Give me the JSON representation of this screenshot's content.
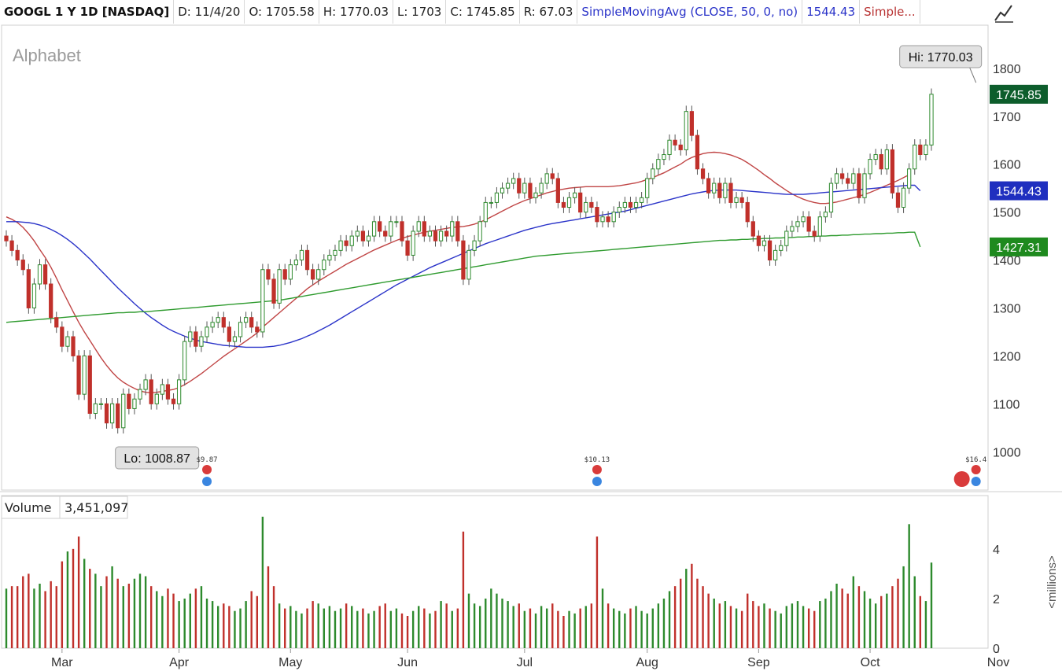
{
  "header": {
    "symbol": "GOOGL 1 Y 1D [NASDAQ]",
    "date": "D: 11/4/20",
    "open": "O: 1705.58",
    "high": "H: 1770.03",
    "low": "L: 1703",
    "close": "C: 1745.85",
    "range": "R: 67.03",
    "sma50_label": "SimpleMovingAvg (CLOSE, 50, 0, no)",
    "sma50_value": "1544.43",
    "sma20_label": "Simple..."
  },
  "chart_data": {
    "type": "candlestick",
    "company": "Alphabet",
    "ylim": [
      920,
      1890
    ],
    "y_ticks": [
      1000,
      1100,
      1200,
      1300,
      1400,
      1500,
      1600,
      1700,
      1800
    ],
    "x_labels": [
      "Mar",
      "Apr",
      "May",
      "Jun",
      "Jul",
      "Aug",
      "Sep",
      "Oct",
      "Nov"
    ],
    "x_label_days": [
      10,
      31,
      51,
      72,
      93,
      115,
      135,
      155,
      178
    ],
    "hi_label": "Hi: 1770.03",
    "lo_label": "Lo: 1008.87",
    "hi_day": 174,
    "lo_day": 20,
    "hi_value": 1770.03,
    "lo_value": 1008.87,
    "badges": [
      {
        "name": "last-close",
        "text": "1745.85",
        "value": 1745.85,
        "color": "#0d5d2c"
      },
      {
        "name": "sma50",
        "text": "1544.43",
        "value": 1544.43,
        "color": "#1f2fbf"
      },
      {
        "name": "sma200",
        "text": "1427.31",
        "value": 1427.31,
        "color": "#1e8a1e"
      }
    ],
    "closes": [
      1440,
      1420,
      1400,
      1380,
      1300,
      1350,
      1390,
      1350,
      1280,
      1260,
      1220,
      1240,
      1200,
      1120,
      1200,
      1080,
      1100,
      1100,
      1060,
      1100,
      1050,
      1120,
      1090,
      1110,
      1130,
      1150,
      1100,
      1120,
      1140,
      1110,
      1100,
      1150,
      1230,
      1250,
      1220,
      1240,
      1260,
      1270,
      1280,
      1260,
      1230,
      1240,
      1270,
      1280,
      1260,
      1250,
      1380,
      1360,
      1310,
      1380,
      1360,
      1390,
      1400,
      1420,
      1380,
      1360,
      1380,
      1400,
      1410,
      1420,
      1440,
      1430,
      1450,
      1460,
      1440,
      1450,
      1480,
      1460,
      1450,
      1480,
      1480,
      1440,
      1410,
      1460,
      1480,
      1450,
      1460,
      1440,
      1460,
      1450,
      1480,
      1440,
      1360,
      1420,
      1440,
      1480,
      1520,
      1520,
      1540,
      1550,
      1560,
      1570,
      1540,
      1560,
      1530,
      1540,
      1560,
      1580,
      1570,
      1520,
      1510,
      1530,
      1540,
      1500,
      1520,
      1510,
      1480,
      1490,
      1480,
      1500,
      1510,
      1520,
      1510,
      1520,
      1530,
      1570,
      1590,
      1610,
      1620,
      1650,
      1640,
      1630,
      1710,
      1660,
      1590,
      1570,
      1540,
      1560,
      1530,
      1560,
      1520,
      1530,
      1520,
      1480,
      1450,
      1430,
      1440,
      1400,
      1420,
      1430,
      1460,
      1470,
      1480,
      1490,
      1460,
      1450,
      1490,
      1500,
      1560,
      1580,
      1570,
      1560,
      1580,
      1530,
      1580,
      1610,
      1620,
      1590,
      1630,
      1540,
      1510,
      1550,
      1590,
      1640,
      1620,
      1640,
      1745.85
    ],
    "moving_averages": [
      {
        "name": "sma20",
        "color": "#c04545",
        "values": [
          1490,
          1485,
          1478,
          1468,
          1455,
          1440,
          1422,
          1405,
          1385,
          1362,
          1338,
          1315,
          1292,
          1270,
          1250,
          1232,
          1214,
          1196,
          1180,
          1166,
          1154,
          1145,
          1138,
          1132,
          1127,
          1124,
          1123,
          1124,
          1126,
          1128,
          1130,
          1134,
          1140,
          1147,
          1155,
          1163,
          1172,
          1181,
          1190,
          1199,
          1207,
          1215,
          1223,
          1231,
          1239,
          1248,
          1260,
          1270,
          1280,
          1290,
          1300,
          1310,
          1320,
          1330,
          1340,
          1348,
          1356,
          1363,
          1370,
          1377,
          1384,
          1391,
          1397,
          1403,
          1409,
          1415,
          1421,
          1426,
          1431,
          1436,
          1441,
          1445,
          1449,
          1452,
          1455,
          1458,
          1460,
          1462,
          1464,
          1466,
          1468,
          1469,
          1470,
          1472,
          1475,
          1479,
          1484,
          1490,
          1496,
          1502,
          1508,
          1514,
          1519,
          1524,
          1528,
          1532,
          1536,
          1540,
          1543,
          1546,
          1548,
          1550,
          1551,
          1552,
          1553,
          1553,
          1553,
          1553,
          1553,
          1554,
          1555,
          1557,
          1559,
          1561,
          1564,
          1568,
          1572,
          1577,
          1582,
          1588,
          1594,
          1600,
          1608,
          1614,
          1618,
          1622,
          1624,
          1625,
          1624,
          1622,
          1619,
          1615,
          1610,
          1603,
          1595,
          1587,
          1578,
          1570,
          1561,
          1553,
          1545,
          1538,
          1532,
          1527,
          1523,
          1520,
          1518,
          1518,
          1519,
          1521,
          1524,
          1527,
          1530,
          1533,
          1537,
          1541,
          1546,
          1551,
          1556,
          1561,
          1566,
          1572,
          1578
        ]
      },
      {
        "name": "sma50",
        "color": "#2b34c9",
        "values": [
          1480,
          1480,
          1480,
          1479,
          1478,
          1476,
          1473,
          1469,
          1464,
          1458,
          1451,
          1443,
          1434,
          1424,
          1413,
          1402,
          1390,
          1378,
          1366,
          1354,
          1342,
          1331,
          1320,
          1309,
          1299,
          1289,
          1280,
          1272,
          1264,
          1257,
          1251,
          1246,
          1241,
          1237,
          1233,
          1230,
          1228,
          1226,
          1224,
          1222,
          1221,
          1220,
          1219,
          1218,
          1218,
          1218,
          1218,
          1219,
          1220,
          1222,
          1225,
          1228,
          1232,
          1236,
          1241,
          1246,
          1252,
          1258,
          1264,
          1271,
          1278,
          1285,
          1292,
          1299,
          1306,
          1313,
          1320,
          1327,
          1334,
          1341,
          1348,
          1354,
          1360,
          1366,
          1372,
          1378,
          1384,
          1389,
          1394,
          1399,
          1404,
          1409,
          1414,
          1419,
          1424,
          1429,
          1434,
          1438,
          1442,
          1446,
          1450,
          1454,
          1458,
          1462,
          1465,
          1468,
          1471,
          1474,
          1476,
          1478,
          1480,
          1482,
          1484,
          1486,
          1488,
          1490,
          1492,
          1494,
          1496,
          1498,
          1500,
          1502,
          1505,
          1508,
          1511,
          1514,
          1517,
          1520,
          1523,
          1526,
          1529,
          1532,
          1535,
          1538,
          1540,
          1542,
          1544,
          1545,
          1546,
          1546,
          1546,
          1546,
          1545,
          1544,
          1543,
          1542,
          1541,
          1540,
          1539,
          1538,
          1537,
          1537,
          1537,
          1537,
          1538,
          1539,
          1540,
          1541,
          1542,
          1543,
          1544,
          1545,
          1546,
          1547,
          1548,
          1549,
          1550,
          1551,
          1552,
          1553,
          1554,
          1555,
          1556,
          1556,
          1544.43
        ]
      },
      {
        "name": "sma200",
        "color": "#2f9b2f",
        "values": [
          1270,
          1271,
          1272,
          1273,
          1274,
          1275,
          1276,
          1277,
          1278,
          1279,
          1280,
          1281,
          1282,
          1283,
          1284,
          1285,
          1286,
          1287,
          1288,
          1289,
          1290,
          1290,
          1291,
          1291,
          1292,
          1292,
          1293,
          1294,
          1295,
          1296,
          1297,
          1298,
          1299,
          1300,
          1301,
          1302,
          1303,
          1304,
          1305,
          1306,
          1307,
          1308,
          1309,
          1310,
          1311,
          1312,
          1313,
          1314,
          1315,
          1316,
          1318,
          1320,
          1322,
          1324,
          1326,
          1328,
          1330,
          1332,
          1334,
          1336,
          1338,
          1340,
          1342,
          1344,
          1346,
          1348,
          1350,
          1352,
          1354,
          1356,
          1358,
          1360,
          1362,
          1364,
          1366,
          1368,
          1370,
          1372,
          1374,
          1376,
          1378,
          1380,
          1382,
          1384,
          1386,
          1388,
          1390,
          1392,
          1394,
          1396,
          1398,
          1400,
          1402,
          1404,
          1406,
          1408,
          1409,
          1410,
          1411,
          1412,
          1413,
          1414,
          1415,
          1416,
          1417,
          1418,
          1419,
          1420,
          1421,
          1422,
          1423,
          1424,
          1425,
          1426,
          1427,
          1428,
          1429,
          1430,
          1431,
          1432,
          1433,
          1434,
          1435,
          1436,
          1437,
          1438,
          1439,
          1440,
          1441,
          1441,
          1442,
          1442,
          1443,
          1443,
          1444,
          1444,
          1445,
          1445,
          1446,
          1446,
          1447,
          1447,
          1448,
          1448,
          1449,
          1449,
          1450,
          1450,
          1451,
          1451,
          1452,
          1452,
          1453,
          1453,
          1454,
          1454,
          1455,
          1455,
          1456,
          1456,
          1457,
          1457,
          1458,
          1458,
          1427.31
        ]
      }
    ],
    "events": [
      {
        "name": "dividend-1",
        "text": "$9.87",
        "day": 36
      },
      {
        "name": "dividend-2",
        "text": "$10.13",
        "day": 106
      },
      {
        "name": "dividend-3",
        "text": "$16.4",
        "day": 174
      }
    ],
    "volume": {
      "label": "Volume",
      "value": "3,451,097",
      "unit": "<millions>",
      "ylim": [
        0,
        5.2
      ],
      "y_ticks": [
        0,
        2,
        4
      ],
      "values": [
        2.4,
        2.5,
        2.5,
        2.9,
        3.0,
        2.4,
        2.6,
        2.3,
        2.7,
        2.5,
        3.5,
        3.9,
        4.0,
        4.5,
        3.6,
        3.2,
        3.0,
        2.5,
        2.9,
        3.3,
        2.8,
        2.5,
        2.6,
        2.8,
        3.0,
        2.9,
        2.5,
        2.3,
        2.1,
        2.4,
        2.2,
        1.9,
        2.0,
        2.2,
        2.4,
        2.5,
        2.0,
        1.9,
        1.7,
        1.8,
        1.7,
        1.5,
        1.6,
        1.9,
        2.3,
        2.1,
        5.3,
        3.3,
        2.5,
        1.8,
        1.6,
        1.7,
        1.5,
        1.4,
        1.6,
        1.9,
        1.8,
        1.6,
        1.7,
        1.5,
        1.6,
        1.8,
        1.7,
        1.5,
        1.6,
        1.4,
        1.5,
        1.7,
        1.8,
        1.5,
        1.6,
        1.4,
        1.3,
        1.5,
        1.7,
        1.6,
        1.4,
        1.5,
        1.9,
        1.8,
        1.5,
        1.6,
        4.7,
        2.2,
        1.8,
        1.7,
        2.0,
        2.4,
        2.2,
        2.0,
        1.9,
        1.7,
        1.8,
        1.5,
        1.6,
        1.4,
        1.7,
        1.6,
        1.8,
        1.5,
        1.3,
        1.5,
        1.4,
        1.6,
        1.7,
        1.8,
        4.5,
        2.4,
        1.8,
        1.6,
        1.5,
        1.4,
        1.6,
        1.7,
        1.5,
        1.4,
        1.6,
        1.8,
        2.0,
        2.3,
        2.5,
        2.8,
        3.2,
        3.4,
        2.8,
        2.5,
        2.2,
        2.0,
        1.8,
        1.9,
        1.7,
        1.6,
        1.5,
        2.2,
        1.9,
        1.7,
        1.8,
        1.6,
        1.5,
        1.4,
        1.7,
        1.8,
        1.9,
        1.7,
        1.6,
        1.5,
        1.9,
        2.0,
        2.3,
        2.6,
        2.4,
        2.2,
        2.9,
        2.5,
        2.3,
        2.0,
        1.8,
        2.1,
        2.2,
        2.5,
        2.8,
        3.3,
        5.0,
        2.9,
        2.1,
        1.9,
        3.451097
      ]
    }
  }
}
